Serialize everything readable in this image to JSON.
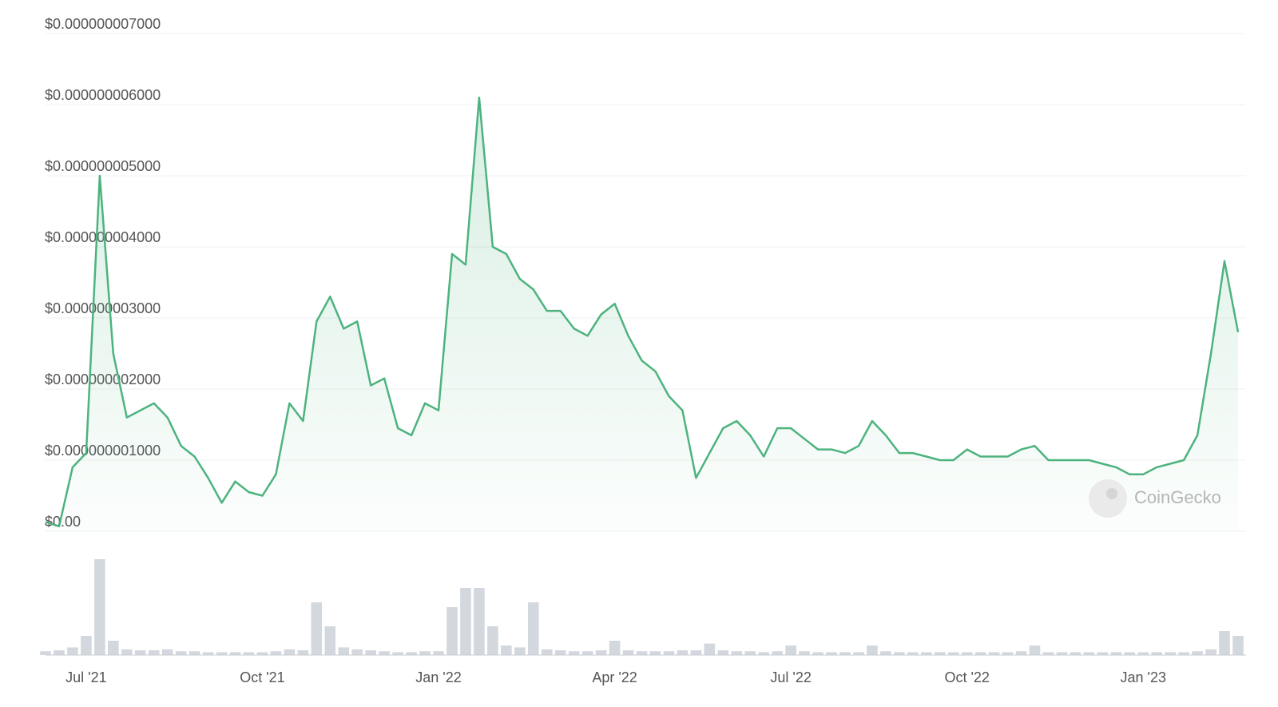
{
  "chart_data": [
    {
      "type": "line",
      "categories": [
        null,
        null,
        null,
        "Jul '21",
        null,
        null,
        null,
        null,
        null,
        null,
        null,
        null,
        null,
        null,
        null,
        null,
        "Oct '21",
        null,
        null,
        null,
        null,
        null,
        null,
        null,
        null,
        null,
        null,
        null,
        null,
        "Jan '22",
        null,
        null,
        null,
        null,
        null,
        null,
        null,
        null,
        null,
        null,
        null,
        null,
        "Apr '22",
        null,
        null,
        null,
        null,
        null,
        null,
        null,
        null,
        null,
        null,
        null,
        null,
        "Jul '22",
        null,
        null,
        null,
        null,
        null,
        null,
        null,
        null,
        null,
        null,
        null,
        null,
        "Oct '22",
        null,
        null,
        null,
        null,
        null,
        null,
        null,
        null,
        null,
        null,
        null,
        null,
        "Jan '23",
        null,
        null,
        null,
        null,
        null,
        null,
        null
      ],
      "series": [
        {
          "color": "#4db37e",
          "values": [
            1.3e-10,
            7e-11,
            9e-10,
            1.1e-09,
            5e-09,
            2.5e-09,
            1.6e-09,
            1.7e-09,
            1.8e-09,
            1.6e-09,
            1.2e-09,
            1.05e-09,
            7.5e-10,
            4e-10,
            7e-10,
            5.5e-10,
            5e-10,
            8e-10,
            1.8e-09,
            1.55e-09,
            2.95e-09,
            3.3e-09,
            2.85e-09,
            2.95e-09,
            2.05e-09,
            2.15e-09,
            1.45e-09,
            1.35e-09,
            1.8e-09,
            1.7e-09,
            3.9e-09,
            3.75e-09,
            6.1e-09,
            4e-09,
            3.9e-09,
            3.55e-09,
            3.4e-09,
            3.1e-09,
            3.1e-09,
            2.85e-09,
            2.75e-09,
            3.05e-09,
            3.2e-09,
            2.75e-09,
            2.4e-09,
            2.25e-09,
            1.9e-09,
            1.7e-09,
            7.5e-10,
            1.1e-09,
            1.45e-09,
            1.55e-09,
            1.35e-09,
            1.05e-09,
            1.45e-09,
            1.45e-09,
            1.3e-09,
            1.15e-09,
            1.15e-09,
            1.1e-09,
            1.2e-09,
            1.55e-09,
            1.35e-09,
            1.1e-09,
            1.1e-09,
            1.05e-09,
            1e-09,
            1e-09,
            1.15e-09,
            1.05e-09,
            1.05e-09,
            1.05e-09,
            1.15e-09,
            1.2e-09,
            1e-09,
            1e-09,
            1e-09,
            1e-09,
            9.5e-10,
            9e-10,
            8e-10,
            8e-10,
            9e-10,
            9.5e-10,
            1e-09,
            1.35e-09,
            2.5e-09,
            3.8e-09,
            2.8e-09
          ]
        }
      ],
      "ylim": [
        0,
        7e-09
      ],
      "yticks": [
        {
          "value": 0,
          "label": "$0.00"
        },
        {
          "value": 1e-09,
          "label": "$0.000000001000"
        },
        {
          "value": 2e-09,
          "label": "$0.000000002000"
        },
        {
          "value": 3e-09,
          "label": "$0.000000003000"
        },
        {
          "value": 4e-09,
          "label": "$0.000000004000"
        },
        {
          "value": 5e-09,
          "label": "$0.000000005000"
        },
        {
          "value": 6e-09,
          "label": "$0.000000006000"
        },
        {
          "value": 7e-09,
          "label": "$0.000000007000"
        }
      ],
      "grid": true,
      "watermark": "CoinGecko"
    },
    {
      "type": "bar",
      "color": "#d3d7de",
      "ylim": [
        0,
        100
      ],
      "values": [
        4,
        5,
        8,
        20,
        100,
        15,
        6,
        5,
        5,
        6,
        4,
        4,
        3,
        3,
        3,
        3,
        3,
        4,
        6,
        5,
        55,
        30,
        8,
        6,
        5,
        4,
        3,
        3,
        4,
        4,
        50,
        70,
        70,
        30,
        10,
        8,
        55,
        6,
        5,
        4,
        4,
        5,
        15,
        5,
        4,
        4,
        4,
        5,
        5,
        12,
        5,
        4,
        4,
        3,
        4,
        10,
        4,
        3,
        3,
        3,
        3,
        10,
        4,
        3,
        3,
        3,
        3,
        3,
        3,
        3,
        3,
        3,
        4,
        10,
        3,
        3,
        3,
        3,
        3,
        3,
        3,
        3,
        3,
        3,
        3,
        4,
        6,
        25,
        20
      ]
    }
  ]
}
